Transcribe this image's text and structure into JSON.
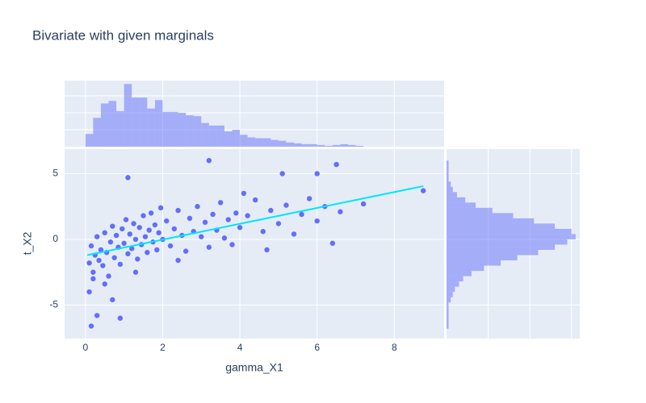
{
  "chart_data": {
    "type": "scatter",
    "title": "Bivariate with given marginals",
    "x_label": "gamma_X1",
    "y_label": "t_X2",
    "xlim": [
      -0.54,
      9.29
    ],
    "ylim": [
      -7.55,
      6.87
    ],
    "xticks": [
      0,
      2,
      4,
      6,
      8
    ],
    "yticks": [
      -5,
      0,
      5
    ],
    "grid": true,
    "series": [
      {
        "color": "#636efa",
        "x": [
          0.1,
          0.15,
          0.2,
          0.25,
          0.3,
          0.35,
          0.4,
          0.45,
          0.5,
          0.55,
          0.6,
          0.65,
          0.7,
          0.75,
          0.8,
          0.85,
          0.9,
          0.95,
          1.0,
          1.05,
          1.1,
          1.15,
          1.2,
          1.25,
          1.3,
          1.35,
          1.4,
          1.45,
          1.5,
          1.55,
          1.6,
          1.65,
          1.7,
          1.75,
          1.8,
          1.85,
          1.9,
          1.95,
          2.0,
          2.1,
          2.2,
          2.3,
          2.4,
          2.5,
          2.6,
          2.7,
          2.8,
          2.9,
          3.0,
          3.1,
          3.2,
          3.3,
          3.4,
          3.5,
          3.6,
          3.7,
          3.8,
          3.9,
          4.0,
          4.2,
          4.4,
          4.6,
          4.8,
          5.0,
          5.2,
          5.4,
          5.6,
          5.8,
          6.0,
          6.2,
          6.4,
          6.6,
          7.2,
          8.75,
          0.1,
          0.15,
          0.3,
          0.7,
          0.9,
          1.1,
          3.2,
          5.1,
          6.5,
          6.0,
          0.2,
          0.5,
          1.3,
          2.4,
          4.1,
          4.7
        ],
        "y": [
          -1.8,
          -0.5,
          -2.5,
          -1.2,
          0.2,
          -1.6,
          -0.8,
          -2.0,
          0.5,
          -1.0,
          -2.8,
          -0.2,
          1.0,
          -1.4,
          0.3,
          -0.6,
          -1.9,
          0.8,
          -0.3,
          1.5,
          -1.1,
          0.4,
          -0.7,
          1.2,
          0.0,
          -1.5,
          0.9,
          -0.4,
          1.8,
          0.2,
          -1.0,
          0.7,
          2.0,
          -0.2,
          1.1,
          -0.8,
          0.5,
          2.4,
          0.0,
          1.4,
          -0.5,
          0.8,
          2.2,
          0.3,
          -0.9,
          1.6,
          0.6,
          2.5,
          0.2,
          1.3,
          -0.6,
          1.9,
          0.7,
          2.8,
          0.1,
          1.5,
          -0.4,
          2.0,
          0.9,
          1.8,
          3.0,
          0.6,
          2.2,
          1.2,
          2.6,
          0.4,
          1.9,
          3.1,
          1.4,
          2.5,
          -0.3,
          2.1,
          2.7,
          3.7,
          -4.0,
          -6.6,
          -5.8,
          -4.6,
          -6.0,
          4.7,
          6.0,
          5.0,
          5.7,
          5.0,
          -3.0,
          -3.4,
          -2.5,
          -1.6,
          3.5,
          -0.8
        ]
      }
    ],
    "trendline": {
      "color": "#00e5ff",
      "x": [
        0.05,
        8.75
      ],
      "y": [
        -1.2,
        4.05
      ]
    },
    "x_histogram": {
      "color": "#636efa",
      "bins": [
        0,
        0.2,
        0.4,
        0.6,
        0.8,
        1.0,
        1.2,
        1.4,
        1.6,
        1.8,
        2.0,
        2.2,
        2.4,
        2.6,
        2.8,
        3.0,
        3.2,
        3.4,
        3.6,
        3.8,
        4.0,
        4.2,
        4.4,
        4.6,
        4.8,
        5.0,
        5.2,
        5.4,
        5.6,
        5.8,
        6.0,
        6.2,
        6.4,
        6.6,
        6.8,
        7.0,
        7.2
      ],
      "counts": [
        15,
        34,
        51,
        54,
        42,
        74,
        58,
        58,
        45,
        55,
        41,
        41,
        40,
        37,
        36,
        28,
        25,
        25,
        18,
        20,
        14,
        11,
        10,
        10,
        8,
        7,
        5,
        4,
        3,
        3,
        2,
        1,
        2,
        3,
        2,
        1
      ],
      "countlim": [
        0,
        78
      ],
      "countticks": [
        20,
        40,
        60
      ]
    },
    "y_histogram": {
      "color": "#636efa",
      "bins": [
        -6.8,
        -6.4,
        -6.0,
        -5.6,
        -5.2,
        -4.8,
        -4.4,
        -4.0,
        -3.6,
        -3.2,
        -2.8,
        -2.4,
        -2.0,
        -1.6,
        -1.2,
        -0.8,
        -0.4,
        0.0,
        0.4,
        0.8,
        1.2,
        1.6,
        2.0,
        2.4,
        2.8,
        3.2,
        3.6,
        4.0,
        4.4,
        4.8,
        5.2,
        5.6,
        6.0
      ],
      "counts": [
        1,
        1,
        1,
        1,
        1,
        2,
        3,
        4,
        6,
        8,
        12,
        18,
        26,
        34,
        44,
        52,
        58,
        62,
        60,
        52,
        42,
        32,
        22,
        14,
        9,
        5,
        3,
        2,
        1,
        1,
        1,
        1
      ],
      "countlim": [
        0,
        64
      ],
      "countticks": [
        20,
        40,
        60
      ]
    }
  }
}
